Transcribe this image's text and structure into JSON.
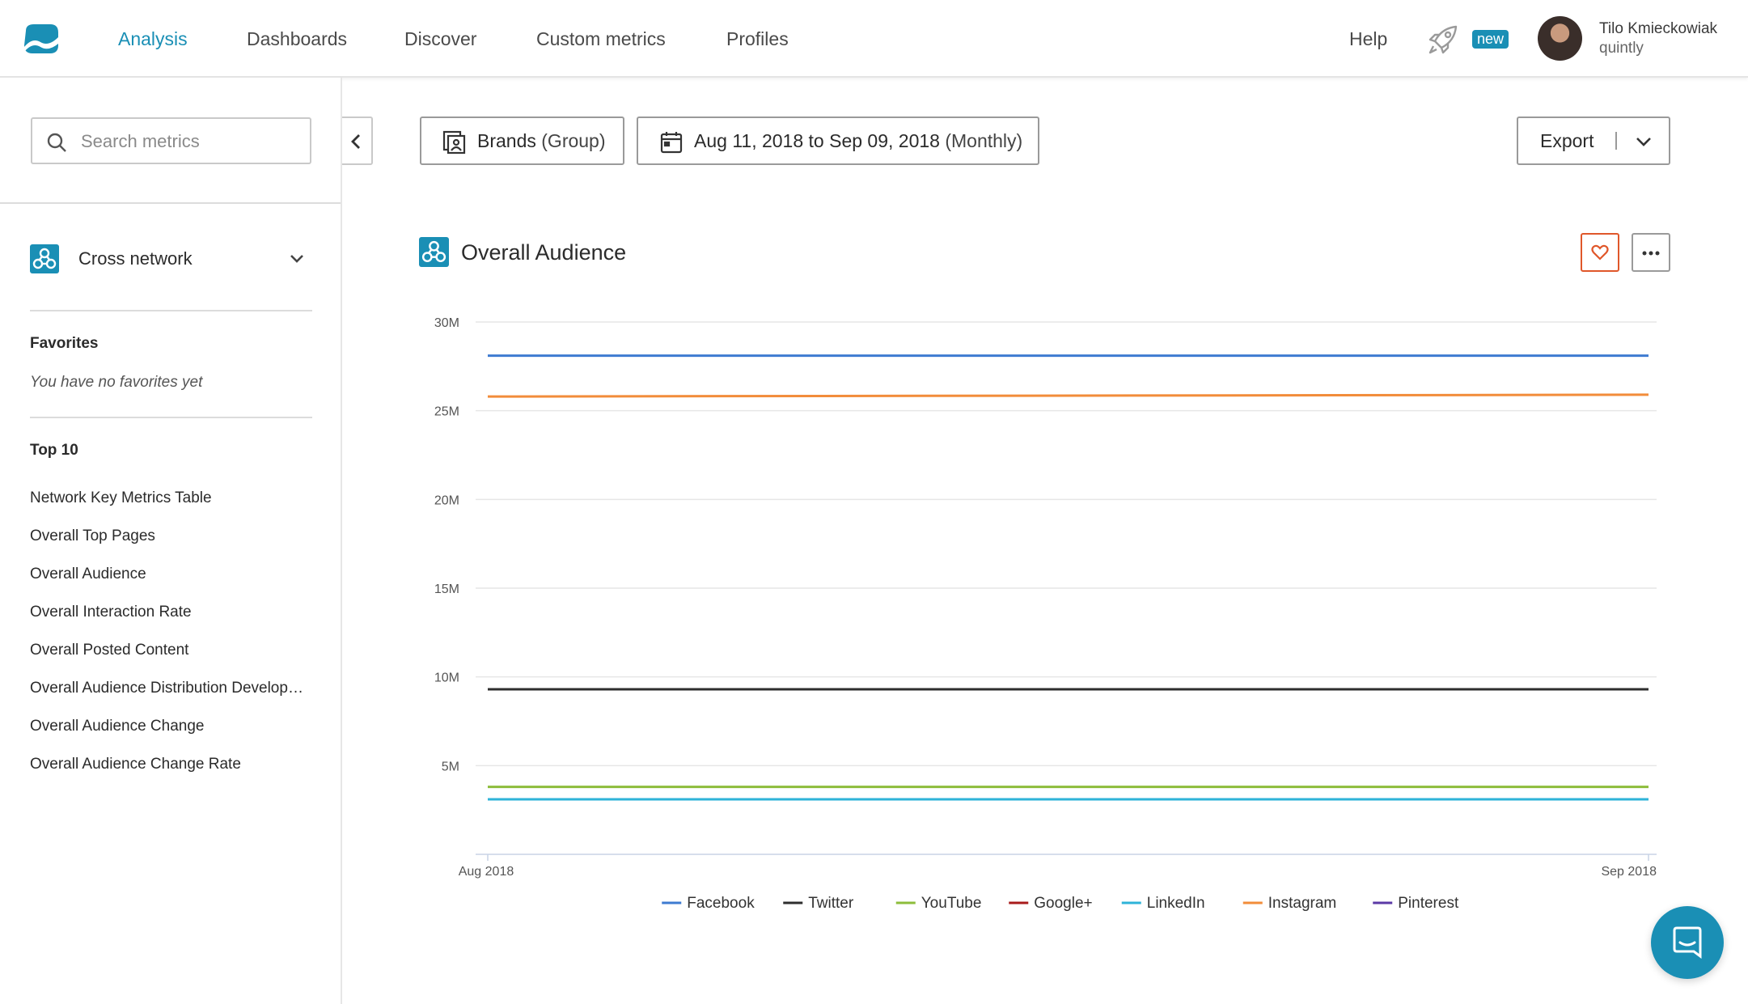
{
  "nav": {
    "items": [
      {
        "label": "Analysis",
        "active": true
      },
      {
        "label": "Dashboards",
        "active": false
      },
      {
        "label": "Discover",
        "active": false
      },
      {
        "label": "Custom metrics",
        "active": false
      },
      {
        "label": "Profiles",
        "active": false
      }
    ],
    "help_label": "Help",
    "new_badge": "new",
    "user_name": "Tilo Kmieckowiak",
    "user_org": "quintly",
    "accent": "#1a8fb5"
  },
  "sidebar": {
    "search_placeholder": "Search metrics",
    "network_label": "Cross network",
    "favorites_title": "Favorites",
    "favorites_empty": "You have no favorites yet",
    "top_title": "Top 10",
    "top_items": [
      "Network Key Metrics Table",
      "Overall Top Pages",
      "Overall Audience",
      "Overall Interaction Rate",
      "Overall Posted Content",
      "Overall Audience Distribution Development",
      "Overall Audience Change",
      "Overall Audience Change Rate"
    ]
  },
  "toolbar": {
    "brands_label": "Brands",
    "brands_suffix": "(Group)",
    "date_label": "Aug 11, 2018 to Sep 09, 2018",
    "date_suffix": "(Monthly)",
    "export_label": "Export"
  },
  "card": {
    "title": "Overall Audience"
  },
  "chart_data": {
    "type": "line",
    "title": "Overall Audience",
    "x": [
      "Aug 2018",
      "Sep 2018"
    ],
    "ylim": [
      0,
      30000000
    ],
    "yticks": [
      "5M",
      "10M",
      "15M",
      "20M",
      "25M",
      "30M"
    ],
    "grid": true,
    "legend_position": "bottom",
    "series": [
      {
        "name": "Facebook",
        "color": "#3e7bd1",
        "values": [
          28100000,
          28100000
        ]
      },
      {
        "name": "Twitter",
        "color": "#2e2e2e",
        "values": [
          9300000,
          9300000
        ]
      },
      {
        "name": "YouTube",
        "color": "#8dbd3b",
        "values": [
          3800000,
          3800000
        ]
      },
      {
        "name": "Google+",
        "color": "#a81b1b",
        "values": [
          null,
          null
        ]
      },
      {
        "name": "LinkedIn",
        "color": "#2eb3d8",
        "values": [
          3100000,
          3100000
        ]
      },
      {
        "name": "Instagram",
        "color": "#f28c3a",
        "values": [
          25800000,
          25900000
        ]
      },
      {
        "name": "Pinterest",
        "color": "#5b3aa6",
        "values": [
          null,
          null
        ]
      }
    ]
  }
}
